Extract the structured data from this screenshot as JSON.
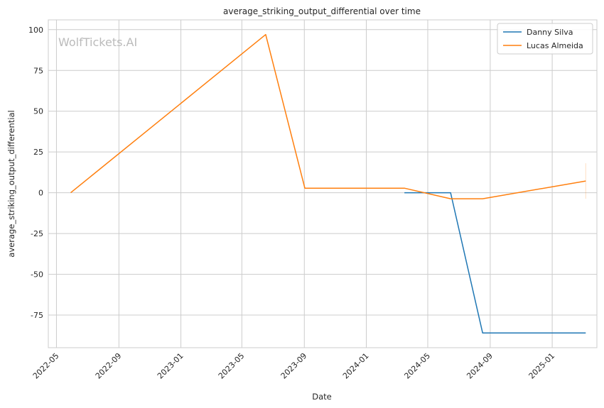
{
  "chart_data": {
    "type": "line",
    "title": "average_striking_output_differential over time",
    "xlabel": "Date",
    "ylabel": "average_striking_output_differential",
    "watermark": "WolfTickets.AI",
    "x_ticks": [
      "2022-05",
      "2022-09",
      "2023-01",
      "2023-05",
      "2023-09",
      "2024-01",
      "2024-05",
      "2024-09",
      "2025-01"
    ],
    "y_ticks": [
      100,
      75,
      50,
      25,
      0,
      -25,
      -50,
      -75
    ],
    "xlim": [
      "2022-04-15",
      "2025-03-30"
    ],
    "ylim": [
      -95,
      106
    ],
    "grid": true,
    "legend_position": "top-right",
    "series": [
      {
        "name": "Danny Silva",
        "color": "#1f77b4",
        "points": [
          {
            "x": "2024-03-16",
            "y": 0
          },
          {
            "x": "2024-06-15",
            "y": 0
          },
          {
            "x": "2024-08-17",
            "y": -86
          },
          {
            "x": "2025-03-08",
            "y": -86
          }
        ]
      },
      {
        "name": "Lucas Almeida",
        "color": "#ff7f0e",
        "points": [
          {
            "x": "2022-05-29",
            "y": 0
          },
          {
            "x": "2023-06-17",
            "y": 97
          },
          {
            "x": "2023-09-02",
            "y": 2.8
          },
          {
            "x": "2024-03-16",
            "y": 2.8
          },
          {
            "x": "2024-06-15",
            "y": -3.7
          },
          {
            "x": "2024-08-17",
            "y": -3.7
          },
          {
            "x": "2025-03-08",
            "y": 7.2
          }
        ]
      }
    ]
  }
}
